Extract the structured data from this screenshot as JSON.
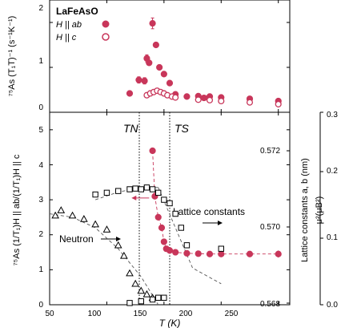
{
  "chart_data": [
    {
      "type": "scatter",
      "panel": "top",
      "title": "LaFeAsO",
      "ylabel": "⁷⁵As (T₁T)⁻¹ (s⁻¹K⁻¹)",
      "xlim": [
        50,
        260
      ],
      "ylim": [
        0,
        2.5
      ],
      "yticks": [
        "0",
        "1",
        "2"
      ],
      "series": [
        {
          "name": "H || ab",
          "marker": "filled-circle",
          "color": "#c8365a",
          "x": [
            120,
            128,
            133,
            135,
            137,
            140,
            143,
            146,
            150,
            155,
            160,
            170,
            180,
            185,
            190,
            200,
            225,
            250
          ],
          "y": [
            0.42,
            0.72,
            0.7,
            1.2,
            1.1,
            1.98,
            1.5,
            1.0,
            0.85,
            0.65,
            0.4,
            0.35,
            0.36,
            0.32,
            0.35,
            0.33,
            0.3,
            0.25
          ],
          "err": [
            0.05,
            0.07,
            0.07,
            0.08,
            0.05,
            0.12,
            0.04,
            0.05,
            0.04,
            0.04,
            0.03,
            0.03,
            0.03,
            0.03,
            0.03,
            0.03,
            0.03,
            0.04
          ]
        },
        {
          "name": "H || c",
          "marker": "open-circle",
          "color": "#c8365a",
          "x": [
            135,
            138,
            141,
            144,
            147,
            150,
            153,
            157,
            160,
            180,
            190,
            200,
            225,
            250
          ],
          "y": [
            0.38,
            0.42,
            0.45,
            0.48,
            0.45,
            0.42,
            0.38,
            0.35,
            0.33,
            0.28,
            0.27,
            0.25,
            0.22,
            0.18
          ],
          "err": []
        }
      ]
    },
    {
      "type": "scatter",
      "panel": "bottom",
      "xlabel": "T (K)",
      "xlim": [
        50,
        260
      ],
      "xticks": [
        "50",
        "100",
        "150",
        "200",
        "250"
      ],
      "ylabel": "⁷⁵As (1/T₁)H || ab/(1/T₁)H || c",
      "ylim": [
        0,
        5.5
      ],
      "yticks": [
        "0",
        "1",
        "2",
        "3",
        "4",
        "5"
      ],
      "y2label": "Lattice constants a, b (nm)",
      "y2ticks": [
        "0.568",
        "0.570",
        "0.572"
      ],
      "y3label": "μ²(μB²)",
      "y3ticks": [
        "0.0",
        "0.1",
        "0.2",
        "0.3"
      ],
      "vlines": [
        {
          "label": "TN",
          "x": 142
        },
        {
          "label": "TS",
          "x": 168
        }
      ],
      "annotations": [
        "Neutron",
        "Lattice constants"
      ],
      "series": [
        {
          "name": "NMR ratio",
          "marker": "filled-circle",
          "color": "#c8365a",
          "x": [
            140,
            142,
            145,
            148,
            150,
            152,
            155,
            160,
            170,
            180,
            190,
            200,
            225,
            250
          ],
          "y": [
            4.4,
            3.1,
            2.5,
            2.2,
            1.8,
            1.6,
            1.55,
            1.5,
            1.47,
            1.46,
            1.45,
            1.45,
            1.45,
            1.45
          ],
          "err": [
            0,
            0,
            0,
            0,
            0,
            0,
            0,
            0,
            0,
            0,
            0,
            0,
            0,
            0.1
          ]
        },
        {
          "name": "Lattice constants",
          "marker": "open-square",
          "color": "#000000",
          "x": [
            90,
            100,
            110,
            120,
            125,
            130,
            135,
            140,
            145,
            150,
            155,
            160,
            165,
            170,
            200
          ],
          "y": [
            3.15,
            3.2,
            3.25,
            3.3,
            3.32,
            3.3,
            3.35,
            3.3,
            3.2,
            3.0,
            2.9,
            2.6,
            2.2,
            1.7,
            1.6
          ],
          "y_lattice_nm": [
            0.57125,
            0.5713,
            0.57135,
            0.5714,
            0.57142,
            0.5714,
            0.57145,
            0.5714,
            0.5713,
            0.5711,
            0.571,
            0.5707,
            0.5703,
            0.5698,
            0.5697
          ],
          "curves": [
            {
              "x": [
                90,
                110,
                130,
                145
              ],
              "y": [
                3.0,
                3.22,
                3.35,
                3.35
              ]
            },
            {
              "x": [
                145,
                175,
                200
              ],
              "y": [
                3.35,
                1.05,
                0.6
              ]
            }
          ]
        },
        {
          "name": "Neutron",
          "marker": "open-triangle",
          "color": "#000000",
          "x": [
            55,
            60,
            70,
            80,
            90,
            100,
            110,
            115,
            120,
            125,
            130,
            135,
            140
          ],
          "y": [
            2.55,
            2.7,
            2.55,
            2.45,
            2.3,
            2.15,
            1.7,
            1.4,
            0.9,
            0.6,
            0.4,
            0.3,
            0.2
          ],
          "y_mu2": [
            0.14,
            0.148,
            0.14,
            0.134,
            0.126,
            0.118,
            0.093,
            0.077,
            0.049,
            0.033,
            0.022,
            0.016,
            0.011
          ],
          "curve": {
            "x": [
              50,
              70,
              90,
              110,
              130,
              145
            ],
            "y": [
              2.6,
              2.5,
              2.2,
              1.6,
              0.8,
              0
            ]
          }
        },
        {
          "name": "Lattice low",
          "marker": "open-square",
          "color": "#000000",
          "x": [
            120,
            130,
            140,
            145,
            150
          ],
          "y": [
            0.05,
            0.1,
            0.15,
            0.2,
            0.2
          ]
        }
      ]
    }
  ]
}
